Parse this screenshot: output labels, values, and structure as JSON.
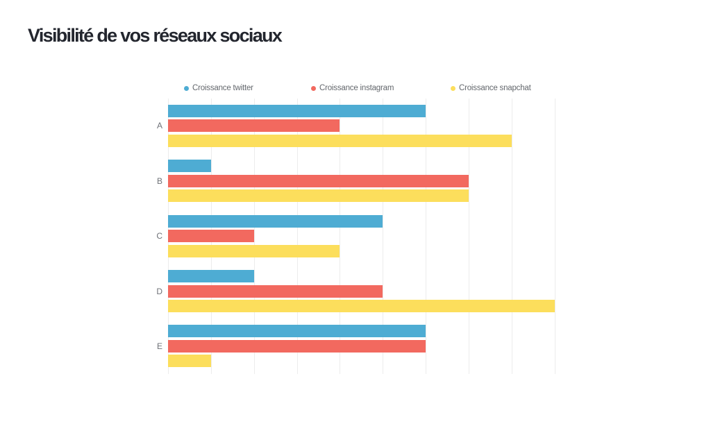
{
  "chart_data": {
    "type": "bar",
    "orientation": "horizontal",
    "title": "Visibilité de vos réseaux sociaux",
    "categories": [
      "A",
      "B",
      "C",
      "D",
      "E"
    ],
    "series": [
      {
        "name": "Croissance twitter",
        "color": "#4eacd3",
        "values": [
          6,
          1,
          5,
          2,
          6
        ]
      },
      {
        "name": "Croissance instagram",
        "color": "#f2695f",
        "values": [
          4,
          7,
          2,
          5,
          6
        ]
      },
      {
        "name": "Croissance snapchat",
        "color": "#fcde5c",
        "values": [
          8,
          7,
          4,
          9,
          1
        ]
      }
    ],
    "xlim": [
      0,
      9
    ],
    "gridlines": 10,
    "grid": true,
    "legend_position": "top",
    "x_tick_labels_visible": false
  }
}
